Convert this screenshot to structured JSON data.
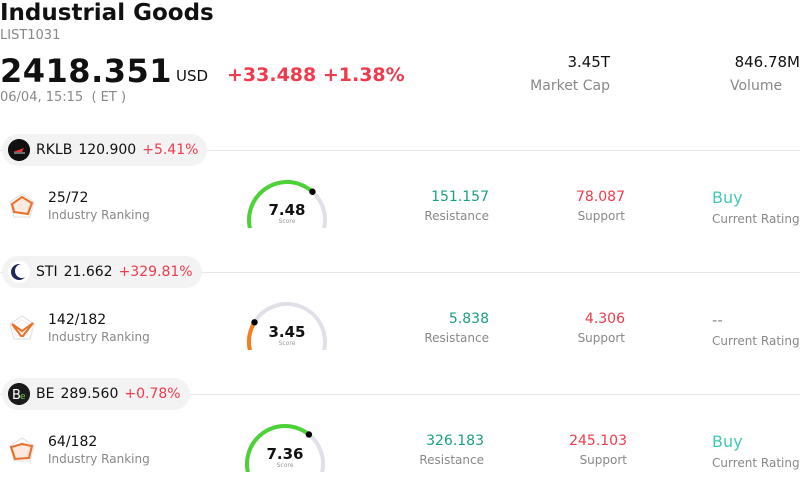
{
  "header": {
    "title": "Industrial Goods",
    "code": "LIST1031",
    "price": "2418.351",
    "currency": "USD",
    "change": "+33.488 +1.38%",
    "timestamp": "06/04, 15:15  ( ET )"
  },
  "metrics": {
    "market_cap": {
      "value": "3.45T",
      "label": "Market Cap"
    },
    "volume": {
      "value": "846.78M",
      "label": "Volume"
    }
  },
  "stocks": [
    {
      "ticker": "RKLB",
      "price": "120.900",
      "change": "+5.41%",
      "logo_icon": "rocket-lab-logo",
      "rank": "25/72",
      "rank_label": "Industry Ranking",
      "score": "7.48",
      "score_value": 7.48,
      "score_label": "Score",
      "resistance": "151.157",
      "resistance_label": "Resistance",
      "support": "78.087",
      "support_label": "Support",
      "rating": "Buy",
      "rating_label": "Current Rating"
    },
    {
      "ticker": "STI",
      "price": "21.662",
      "change": "+329.81%",
      "logo_icon": "crescent-logo",
      "rank": "142/182",
      "rank_label": "Industry Ranking",
      "score": "3.45",
      "score_value": 3.45,
      "score_label": "Score",
      "resistance": "5.838",
      "resistance_label": "Resistance",
      "support": "4.306",
      "support_label": "Support",
      "rating": "--",
      "rating_label": "Current Rating"
    },
    {
      "ticker": "BE",
      "price": "289.560",
      "change": "+0.78%",
      "logo_icon": "bloom-energy-logo",
      "rank": "64/182",
      "rank_label": "Industry Ranking",
      "score": "7.36",
      "score_value": 7.36,
      "score_label": "Score",
      "resistance": "326.183",
      "resistance_label": "Resistance",
      "support": "245.103",
      "support_label": "Support",
      "rating": "Buy",
      "rating_label": "Current Rating"
    }
  ],
  "colors": {
    "up": "#ef3b4c",
    "resistance": "#1a9e83",
    "rating_buy": "#40c9b5",
    "gauge_high": "#4cd137",
    "gauge_low": "#f57c1f",
    "gauge_track": "#dfe0e8",
    "rank_icon": "#e8702a"
  }
}
